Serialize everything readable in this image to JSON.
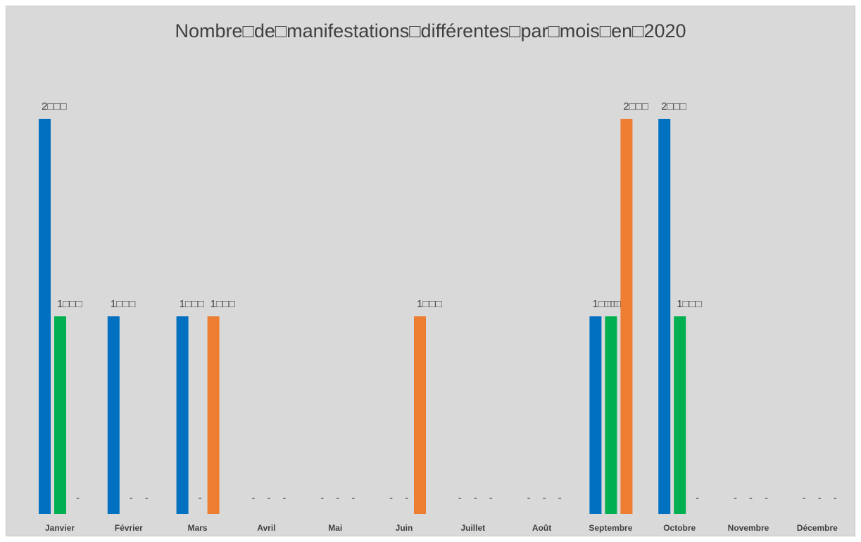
{
  "chart_data": {
    "type": "bar",
    "title": "Nombre□de□manifestations□différentes□par□mois□en□2020",
    "xlabel": "",
    "ylabel": "",
    "ylim": [
      0,
      2
    ],
    "grid": false,
    "legend": "none",
    "categories": [
      "Janvier",
      "Février",
      "Mars",
      "Avril",
      "Mai",
      "Juin",
      "Juillet",
      "Août",
      "Septembre",
      "Octobre",
      "Novembre",
      "Décembre"
    ],
    "series": [
      {
        "color": "#0070c0",
        "values": [
          2,
          1,
          1,
          0,
          0,
          0,
          0,
          0,
          1,
          2,
          0,
          0
        ],
        "labels": [
          "2□□□",
          "1□□□",
          "1□□□",
          "-",
          "-",
          "-",
          "-",
          "-",
          "1□□□",
          "2□□□",
          "-",
          "-"
        ]
      },
      {
        "color": "#00b050",
        "values": [
          1,
          0,
          0,
          0,
          0,
          0,
          0,
          0,
          1,
          1,
          0,
          0
        ],
        "labels": [
          "1□□□",
          "-",
          "-",
          "-",
          "-",
          "-",
          "-",
          "-",
          "□□□",
          "1□□□",
          "-",
          "-"
        ]
      },
      {
        "color": "#ed7d31",
        "values": [
          0,
          0,
          1,
          0,
          0,
          1,
          0,
          0,
          2,
          0,
          0,
          0
        ],
        "labels": [
          "-",
          "-",
          "1□□□",
          "-",
          "-",
          "1□□□",
          "-",
          "-",
          "2□□□",
          "-",
          "-",
          "-"
        ]
      }
    ]
  }
}
